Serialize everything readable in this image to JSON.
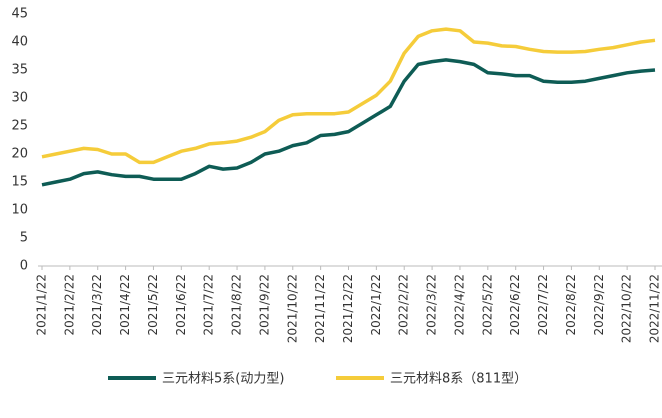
{
  "chart_data": {
    "type": "line",
    "categories": [
      "2021/1/22",
      null,
      "2021/2/22",
      null,
      "2021/3/22",
      null,
      "2021/4/22",
      null,
      "2021/5/22",
      null,
      "2021/6/22",
      null,
      "2021/7/22",
      null,
      "2021/8/22",
      null,
      "2021/9/22",
      null,
      "2021/10/22",
      null,
      "2021/11/22",
      null,
      "2021/12/22",
      null,
      "2022/1/22",
      null,
      "2022/2/22",
      null,
      "2022/3/22",
      null,
      "2022/4/22",
      null,
      "2022/5/22",
      null,
      "2022/6/22",
      null,
      "2022/7/22",
      null,
      "2022/8/22",
      null,
      "2022/9/22",
      null,
      "2022/10/22",
      null,
      "2022/11/22"
    ],
    "series": [
      {
        "name": "三元材料5系(动力型)",
        "color": "#0e5c55",
        "values": [
          14.5,
          15,
          15.5,
          16.5,
          16.8,
          16.3,
          16,
          16,
          15.5,
          15.5,
          15.5,
          16.5,
          17.8,
          17.3,
          17.5,
          18.5,
          20,
          20.5,
          21.5,
          22,
          23.3,
          23.5,
          24,
          25.5,
          27,
          28.5,
          33,
          36,
          36.5,
          36.8,
          36.5,
          36,
          34.5,
          34.3,
          34,
          34,
          33,
          32.8,
          32.8,
          33,
          33.5,
          34,
          34.5,
          34.8,
          35
        ]
      },
      {
        "name": "三元材料8系（811型）",
        "color": "#f5cc3a",
        "values": [
          19.5,
          20,
          20.5,
          21,
          20.8,
          20,
          20,
          18.5,
          18.5,
          19.5,
          20.5,
          21,
          21.8,
          22,
          22.3,
          23,
          24,
          26,
          27,
          27.2,
          27.2,
          27.2,
          27.5,
          29,
          30.5,
          33,
          38,
          41,
          42,
          42.3,
          42,
          40,
          39.8,
          39.3,
          39.2,
          38.7,
          38.3,
          38.2,
          38.2,
          38.3,
          38.7,
          39,
          39.5,
          40,
          40.3
        ]
      }
    ],
    "ylim": [
      0,
      45
    ],
    "yticks": [
      0,
      5,
      10,
      15,
      20,
      25,
      30,
      35,
      40,
      45
    ],
    "grid": false
  }
}
